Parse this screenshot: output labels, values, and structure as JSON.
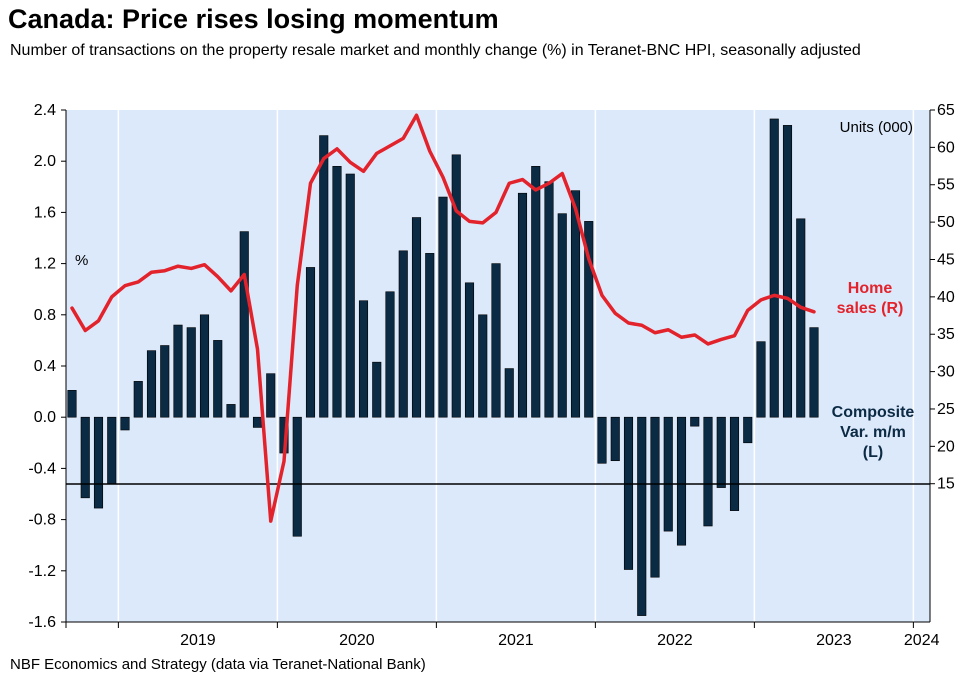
{
  "title": "Canada: Price rises losing momentum",
  "subtitle": "Number of transactions on the property resale market and monthly change (%) in Teranet-BNC HPI, seasonally adjusted",
  "source": "NBF Economics and Strategy (data via Teranet-National Bank)",
  "colors": {
    "background": "#dce9fb",
    "bar": "#0b2a44",
    "line": "#e3232c",
    "grid": "#ffffff"
  },
  "chart_data": {
    "type": "bar",
    "x_start": "2018-09",
    "x_end": "2024-12",
    "years": [
      "2019",
      "2020",
      "2021",
      "2022",
      "2023",
      "2024"
    ],
    "left_axis": {
      "unit_label": "%",
      "ylim": [
        -1.6,
        2.4
      ],
      "ticks": [
        "2.4",
        "2.0",
        "1.6",
        "1.2",
        "0.8",
        "0.4",
        "0.0",
        "-0.4",
        "-0.8",
        "-1.2",
        "-1.6"
      ]
    },
    "right_axis": {
      "unit_label": "Units (000)",
      "ylim": [
        -3.5,
        65
      ],
      "ticks": [
        "65",
        "60",
        "55",
        "50",
        "45",
        "40",
        "35",
        "30",
        "25",
        "20",
        "15"
      ]
    },
    "series": [
      {
        "name": "Composite Var. m/m (L)",
        "label_lines": [
          "Composite",
          "Var. m/m",
          "(L)"
        ],
        "type": "bar",
        "axis": "left",
        "values": [
          0.21,
          -0.63,
          -0.71,
          -0.52,
          -0.1,
          0.28,
          0.52,
          0.56,
          0.72,
          0.7,
          0.8,
          0.6,
          0.1,
          1.45,
          -0.08,
          0.34,
          -0.28,
          -0.93,
          1.17,
          2.2,
          1.96,
          1.9,
          0.91,
          0.43,
          0.98,
          1.3,
          1.56,
          1.28,
          1.72,
          2.05,
          1.05,
          0.8,
          1.2,
          0.38,
          1.75,
          1.96,
          1.84,
          1.59,
          1.77,
          1.53,
          -0.36,
          -0.34,
          -1.19,
          -1.55,
          -1.25,
          -0.89,
          -1.0,
          -0.07,
          -0.85,
          -0.55,
          -0.73,
          -0.2,
          0.59,
          2.33,
          2.28,
          1.55,
          0.7
        ]
      },
      {
        "name": "Home sales (R)",
        "label_lines": [
          "Home",
          "sales (R)"
        ],
        "type": "line",
        "axis": "right",
        "values": [
          38.5,
          35.5,
          36.8,
          40.0,
          41.5,
          42.0,
          43.3,
          43.5,
          44.1,
          43.8,
          44.3,
          42.7,
          40.8,
          43.0,
          33.0,
          10.0,
          18.0,
          41.5,
          55.2,
          58.5,
          59.8,
          58.0,
          56.8,
          59.2,
          60.2,
          61.2,
          64.3,
          59.5,
          56.0,
          51.5,
          50.1,
          49.9,
          51.3,
          55.2,
          55.7,
          54.3,
          55.2,
          56.5,
          51.8,
          45.1,
          40.2,
          37.8,
          36.5,
          36.2,
          35.2,
          35.6,
          34.6,
          34.9,
          33.7,
          34.3,
          34.8,
          38.2,
          39.6,
          40.2,
          39.8,
          38.6,
          38.0
        ]
      }
    ]
  }
}
